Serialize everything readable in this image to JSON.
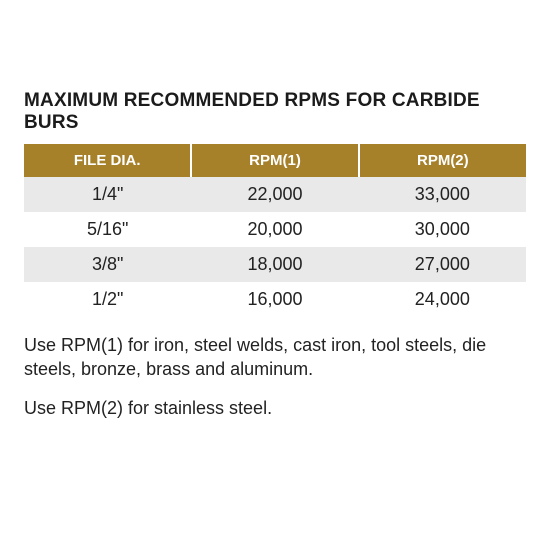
{
  "title": "MAXIMUM RECOMMENDED RPMS FOR CARBIDE BURS",
  "table": {
    "header_bg": "#a7802a",
    "header_fg": "#ffffff",
    "row_even_bg": "#e9e9e9",
    "row_odd_bg": "#ffffff",
    "columns": [
      "FILE DIA.",
      "RPM(1)",
      "RPM(2)"
    ],
    "rows": [
      [
        "1/4\"",
        "22,000",
        "33,000"
      ],
      [
        "5/16\"",
        "20,000",
        "30,000"
      ],
      [
        "3/8\"",
        "18,000",
        "27,000"
      ],
      [
        "1/2\"",
        "16,000",
        "24,000"
      ]
    ]
  },
  "notes": [
    "Use RPM(1) for iron, steel welds, cast iron, tool steels, die steels, bronze, brass and aluminum.",
    "Use RPM(2) for stainless steel."
  ]
}
